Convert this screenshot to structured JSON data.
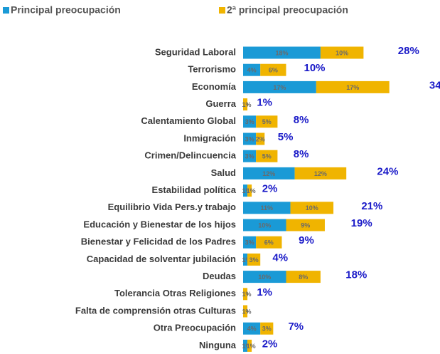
{
  "chart_data": {
    "type": "bar",
    "orientation": "horizontal",
    "stacked": true,
    "categories": [
      "Seguridad Laboral",
      "Terrorismo",
      "Economía",
      "Guerra",
      "Calentamiento Global",
      "Inmigración",
      "Crimen/Delincuencia",
      "Salud",
      "Estabilidad política",
      "Equilibrio Vida Pers.y trabajo",
      "Educación y Bienestar de los hijos",
      "Bienestar y Felicidad de los Padres",
      "Capacidad de solventar jubilación",
      "Deudas",
      "Tolerancia Otras Religiones",
      "Falta de comprensión otras Culturas",
      "Otra Preocupación",
      "Ninguna"
    ],
    "series": [
      {
        "name": "Principal preocupación",
        "color": "#1a9ad6",
        "values": [
          18,
          4,
          17,
          0,
          3,
          3,
          3,
          12,
          1,
          11,
          10,
          3,
          1,
          10,
          0,
          0,
          4,
          1
        ],
        "value_labels": [
          "18%",
          "4%",
          "17%",
          "0",
          "3%",
          "3%",
          "3%",
          "12%",
          "1%",
          "11%",
          "10%",
          "3%",
          "1%",
          "10%",
          "0",
          "0",
          "4%",
          "1%"
        ]
      },
      {
        "name": "2ª principal preocupación",
        "color": "#f0b400",
        "values": [
          10,
          6,
          17,
          1,
          5,
          2,
          5,
          12,
          1,
          10,
          9,
          6,
          3,
          8,
          1,
          1,
          3,
          1
        ],
        "value_labels": [
          "10%",
          "6%",
          "17%",
          "1%",
          "5%",
          "2%",
          "5%",
          "12%",
          "1%",
          "10%",
          "9%",
          "6%",
          "3%",
          "8%",
          "1%",
          "1%",
          "3%",
          "1%"
        ]
      }
    ],
    "totals": [
      28,
      10,
      34,
      1,
      8,
      5,
      8,
      24,
      2,
      21,
      19,
      9,
      4,
      18,
      1,
      null,
      7,
      2
    ],
    "totals_labels": [
      "28%",
      "10%",
      "34%",
      "1%",
      "8%",
      "5%",
      "8%",
      "24%",
      "2%",
      "21%",
      "19%",
      "9%",
      "4%",
      "18%",
      "1%",
      null,
      "7%",
      "2%"
    ]
  }
}
